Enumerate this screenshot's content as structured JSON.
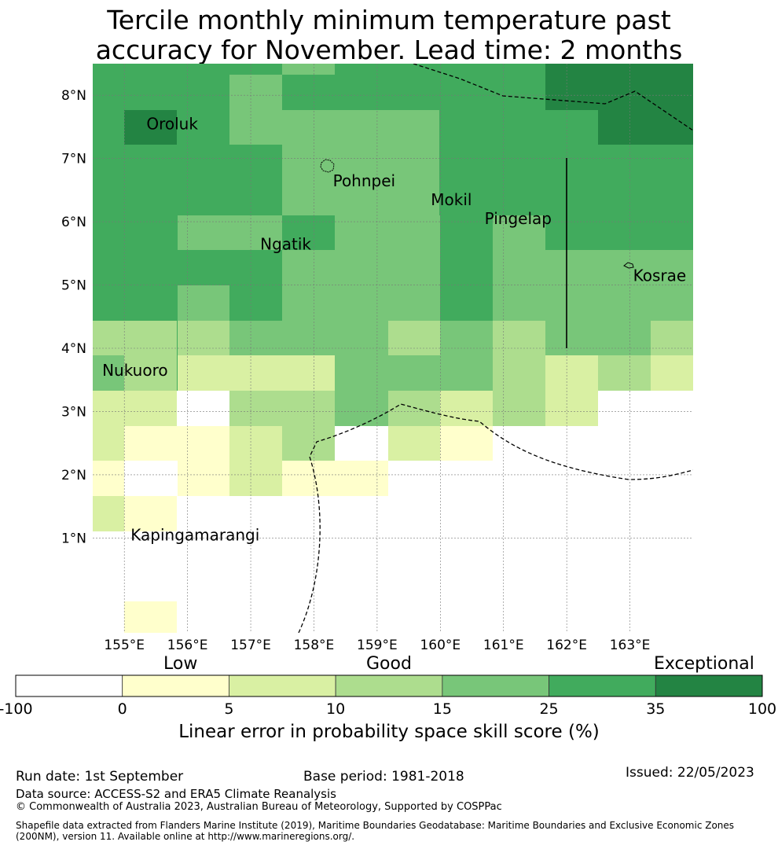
{
  "title": {
    "line1": "Tercile monthly minimum temperature past",
    "line2": "accuracy for November. Lead time: 2 months"
  },
  "map": {
    "lon_range": [
      154.5,
      164.0
    ],
    "lat_range": [
      -0.5,
      8.5
    ],
    "lon_ticks": [
      155,
      156,
      157,
      158,
      159,
      160,
      161,
      162,
      163
    ],
    "lon_tick_labels": [
      "155°E",
      "156°E",
      "157°E",
      "158°E",
      "159°E",
      "160°E",
      "161°E",
      "162°E",
      "163°E"
    ],
    "lat_ticks": [
      1,
      2,
      3,
      4,
      5,
      6,
      7,
      8
    ],
    "lat_tick_labels": [
      "1°N",
      "2°N",
      "3°N",
      "4°N",
      "5°N",
      "6°N",
      "7°N",
      "8°N"
    ],
    "grid": true,
    "places": [
      {
        "name": "Oroluk",
        "lon": 155.35,
        "lat": 7.55
      },
      {
        "name": "Pohnpei",
        "lon": 158.3,
        "lat": 6.65
      },
      {
        "name": "Mokil",
        "lon": 159.85,
        "lat": 6.35
      },
      {
        "name": "Pingelap",
        "lon": 160.7,
        "lat": 6.05
      },
      {
        "name": "Ngatik",
        "lon": 157.15,
        "lat": 5.65
      },
      {
        "name": "Kosrae",
        "lon": 163.05,
        "lat": 5.15
      },
      {
        "name": "Nukuoro",
        "lon": 154.65,
        "lat": 3.65
      },
      {
        "name": "Kapingamarangi",
        "lon": 155.1,
        "lat": 1.05
      }
    ]
  },
  "colorbar": {
    "ticks": [
      "-100",
      "0",
      "5",
      "10",
      "15",
      "25",
      "35",
      "100"
    ],
    "colors": [
      "#ffffff",
      "#ffffcc",
      "#d9f0a3",
      "#addd8e",
      "#78c679",
      "#41ab5d",
      "#238443"
    ],
    "categories": [
      "Low",
      "Good",
      "Exceptional"
    ],
    "label": "Linear error in probability space skill score (%)"
  },
  "footer": {
    "run_date": "Run date: 1st September",
    "base_period": "Base period: 1981-2018",
    "issued": "Issued: 22/05/2023",
    "data_source": "Data source: ACCESS-S2 and ERA5 Climate Reanalysis",
    "copyright": "© Commonwealth of Australia 2023, Australian Bureau of Meteorology, Supported by COSPPac",
    "shapefile_line1": "Shapefile data extracted from Flanders Marine Institute (2019), Maritime Boundaries Geodatabase: Maritime Boundaries and Exclusive Economic Zones",
    "shapefile_line2": "(200NM), version 11. Available online at http://www.marineregions.org/."
  }
}
